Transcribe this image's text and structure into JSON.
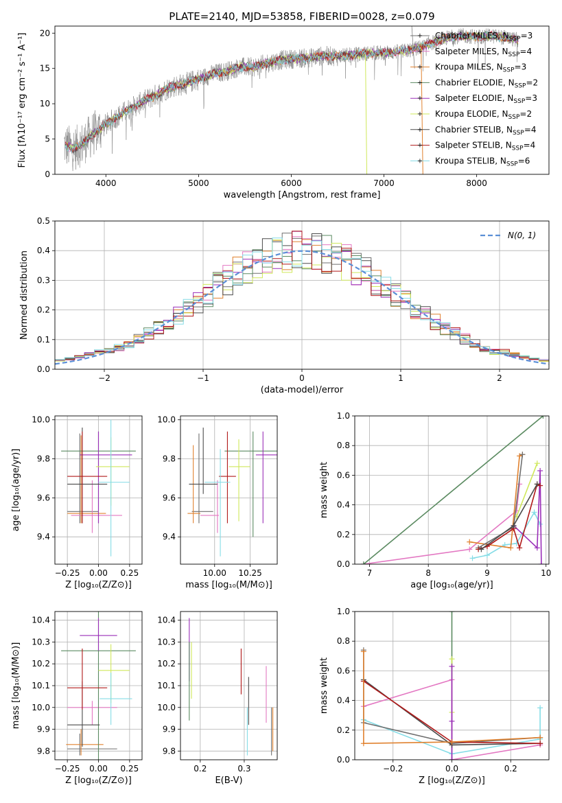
{
  "figure": {
    "title": "PLATE=2140, MJD=53858, FIBERID=0028, z=0.079"
  },
  "colors": {
    "chabrier_miles": "#6f6f6f",
    "salpeter_miles": "#e377c2",
    "kroupa_miles": "#e0812e",
    "chabrier_elodie": "#5a8a60",
    "salpeter_elodie": "#9a2eb8",
    "kroupa_elodie": "#cfe85a",
    "chabrier_stelib": "#4a4a4a",
    "salpeter_stelib": "#b01818",
    "kroupa_stelib": "#84dce6",
    "data": "#808080",
    "gauss": "#5b8fd6",
    "grid": "#b0b0b0"
  },
  "chart_data": [
    {
      "id": "spectrum",
      "type": "line",
      "xlabel": "wavelength [Angstrom, rest frame]",
      "ylabel": "Flux [fλ10⁻¹⁷ erg cm⁻² s⁻¹ A⁻¹]",
      "xlim": [
        3450,
        8780
      ],
      "ylim": [
        0,
        21
      ],
      "xticks": [
        4000,
        5000,
        6000,
        7000,
        8000
      ],
      "yticks": [
        0,
        5,
        10,
        15,
        20
      ],
      "grid": false,
      "legend_position": "right",
      "legend": [
        {
          "label": "Chabrier MILES, N",
          "sub": "SSP",
          "tail": "=3",
          "color": "chabrier_miles"
        },
        {
          "label": "Salpeter MILES, N",
          "sub": "SSP",
          "tail": "=4",
          "color": "salpeter_miles"
        },
        {
          "label": "Kroupa MILES, N",
          "sub": "SSP",
          "tail": "=3",
          "color": "kroupa_miles"
        },
        {
          "label": "Chabrier ELODIE, N",
          "sub": "SSP",
          "tail": "=2",
          "color": "chabrier_elodie"
        },
        {
          "label": "Salpeter ELODIE, N",
          "sub": "SSP",
          "tail": "=3",
          "color": "salpeter_elodie"
        },
        {
          "label": "Kroupa ELODIE, N",
          "sub": "SSP",
          "tail": "=2",
          "color": "kroupa_elodie"
        },
        {
          "label": "Chabrier STELIB, N",
          "sub": "SSP",
          "tail": "=4",
          "color": "chabrier_stelib"
        },
        {
          "label": "Salpeter STELIB, N",
          "sub": "SSP",
          "tail": "=4",
          "color": "salpeter_stelib"
        },
        {
          "label": "Kroupa STELIB, N",
          "sub": "SSP",
          "tail": "=6",
          "color": "kroupa_stelib"
        }
      ],
      "continuum": {
        "x": [
          3550,
          3650,
          3750,
          3850,
          3950,
          4100,
          4250,
          4400,
          4550,
          4700,
          4850,
          5000,
          5150,
          5300,
          5450,
          5600,
          5750,
          5900,
          6050,
          6200,
          6350,
          6500,
          6650,
          6800,
          6950,
          7100,
          7250,
          7400,
          7550,
          7700,
          7850,
          8000,
          8150,
          8300,
          8450
        ],
        "y": [
          4.2,
          3.6,
          4.3,
          5.6,
          6.6,
          8.0,
          9.2,
          10.3,
          11.3,
          12.4,
          12.8,
          13.5,
          14.2,
          14.6,
          15.2,
          15.2,
          15.8,
          16.2,
          16.4,
          16.5,
          16.8,
          16.7,
          16.9,
          17.1,
          17.2,
          17.3,
          17.5,
          18.0,
          18.8,
          19.4,
          19.6,
          19.5,
          19.6,
          19.4,
          19.0
        ]
      }
    },
    {
      "id": "residuals",
      "type": "histogram",
      "xlabel": "(data-model)/error",
      "ylabel": "Normed distribution",
      "xlim": [
        -2.5,
        2.5
      ],
      "ylim": [
        0,
        0.5
      ],
      "xticks": [
        -2,
        -1,
        0,
        1,
        2
      ],
      "yticks": [
        0.0,
        0.1,
        0.2,
        0.3,
        0.4,
        0.5
      ],
      "grid": true,
      "legend_position": "upper right",
      "legend_label": "N(0, 1)",
      "bin_width": 0.1
    },
    {
      "id": "age_vs_Z",
      "type": "scatter",
      "xlabel": "Z [log₁₀(Z/Z⊙)]",
      "ylabel": "age  [log₁₀(age/yr)]",
      "xlim": [
        -0.35,
        0.35
      ],
      "ylim": [
        9.26,
        10.02
      ],
      "xticks": [
        -0.25,
        0.0,
        0.25
      ],
      "yticks": [
        9.4,
        9.6,
        9.8,
        10.0
      ],
      "grid": true,
      "points": [
        {
          "color": "chabrier_miles",
          "x": -0.15,
          "y": 9.53,
          "xerr": [
            0.1,
            0.15
          ],
          "yerr": [
            0.06,
            0.4
          ]
        },
        {
          "color": "salpeter_miles",
          "x": -0.05,
          "y": 9.51,
          "xerr": [
            0.17,
            0.24
          ],
          "yerr": [
            0.09,
            0.18
          ]
        },
        {
          "color": "kroupa_miles",
          "x": -0.14,
          "y": 9.52,
          "xerr": [
            0.11,
            0.2
          ],
          "yerr": [
            0.05,
            0.4
          ]
        },
        {
          "color": "chabrier_elodie",
          "x": 0.0,
          "y": 9.84,
          "xerr": [
            0.3,
            0.3
          ],
          "yerr": [
            0.37,
            0.1
          ]
        },
        {
          "color": "salpeter_elodie",
          "x": 0.0,
          "y": 9.82,
          "xerr": [
            0.15,
            0.27
          ],
          "yerr": [
            0.35,
            0.12
          ]
        },
        {
          "color": "kroupa_elodie",
          "x": 0.1,
          "y": 9.76,
          "xerr": [
            0.12,
            0.15
          ],
          "yerr": [
            0.2,
            0.15
          ]
        },
        {
          "color": "chabrier_stelib",
          "x": -0.13,
          "y": 9.67,
          "xerr": [
            0.12,
            0.2
          ],
          "yerr": [
            0.2,
            0.29
          ]
        },
        {
          "color": "salpeter_stelib",
          "x": -0.13,
          "y": 9.71,
          "xerr": [
            0.12,
            0.2
          ],
          "yerr": [
            0.24,
            0.23
          ]
        },
        {
          "color": "kroupa_stelib",
          "x": 0.1,
          "y": 9.68,
          "xerr": [
            0.1,
            0.15
          ],
          "yerr": [
            0.38,
            0.32
          ]
        }
      ]
    },
    {
      "id": "age_vs_mass",
      "type": "scatter",
      "xlabel": "mass [log₁₀(M/M⊙)]",
      "ylabel": "",
      "xlim": [
        9.76,
        10.44
      ],
      "ylim": [
        9.26,
        10.02
      ],
      "xticks": [
        10.0,
        10.25
      ],
      "yticks": [
        9.4,
        9.6,
        9.8,
        10.0
      ],
      "grid": true,
      "points": [
        {
          "color": "chabrier_miles",
          "x": 9.89,
          "y": 9.53,
          "xerr": [
            0.05,
            0.1
          ],
          "yerr": [
            0.06,
            0.4
          ]
        },
        {
          "color": "salpeter_miles",
          "x": 10.02,
          "y": 9.51,
          "xerr": [
            0.12,
            0.01
          ],
          "yerr": [
            0.09,
            0.18
          ]
        },
        {
          "color": "kroupa_miles",
          "x": 9.85,
          "y": 9.52,
          "xerr": [
            0.04,
            0.05
          ],
          "yerr": [
            0.05,
            0.35
          ]
        },
        {
          "color": "chabrier_elodie",
          "x": 10.27,
          "y": 9.84,
          "xerr": [
            0.2,
            0.2
          ],
          "yerr": [
            0.44,
            0.1
          ]
        },
        {
          "color": "salpeter_elodie",
          "x": 10.34,
          "y": 9.82,
          "xerr": [
            0.05,
            0.1
          ],
          "yerr": [
            0.35,
            0.12
          ]
        },
        {
          "color": "kroupa_elodie",
          "x": 10.17,
          "y": 9.76,
          "xerr": [
            0.07,
            0.08
          ],
          "yerr": [
            0.28,
            0.14
          ]
        },
        {
          "color": "chabrier_stelib",
          "x": 9.92,
          "y": 9.67,
          "xerr": [
            0.1,
            0.1
          ],
          "yerr": [
            0.05,
            0.29
          ]
        },
        {
          "color": "salpeter_stelib",
          "x": 10.09,
          "y": 9.71,
          "xerr": [
            0.06,
            0.06
          ],
          "yerr": [
            0.24,
            0.23
          ]
        },
        {
          "color": "kroupa_stelib",
          "x": 10.04,
          "y": 9.68,
          "xerr": [
            0.11,
            0.07
          ],
          "yerr": [
            0.38,
            0.17
          ]
        }
      ]
    },
    {
      "id": "massweight_vs_age",
      "type": "line",
      "xlabel": "age  [log₁₀(age/yr)]",
      "ylabel": "mass weight",
      "xlim": [
        6.75,
        10.05
      ],
      "ylim": [
        0,
        1
      ],
      "xticks": [
        7,
        8,
        9,
        10
      ],
      "yticks": [
        0.0,
        0.2,
        0.4,
        0.6,
        0.8,
        1.0
      ],
      "grid": true,
      "series": [
        {
          "color": "salpeter_miles",
          "x": [
            6.9,
            8.7,
            9.5,
            9.55
          ],
          "y": [
            0.0,
            0.1,
            0.36,
            0.54
          ]
        },
        {
          "color": "chabrier_elodie",
          "x": [
            6.9,
            9.95
          ],
          "y": [
            0.0,
            1.0
          ]
        },
        {
          "color": "kroupa_elodie",
          "x": [
            9.5,
            9.85
          ],
          "y": [
            0.32,
            0.68
          ]
        },
        {
          "color": "kroupa_stelib",
          "x": [
            8.75,
            9.0,
            9.3,
            9.5,
            9.8,
            9.9
          ],
          "y": [
            0.04,
            0.06,
            0.13,
            0.14,
            0.35,
            0.27
          ]
        },
        {
          "color": "salpeter_elodie",
          "x": [
            9.45,
            9.85,
            9.9,
            9.92
          ],
          "y": [
            0.26,
            0.11,
            0.63,
            0.0
          ]
        },
        {
          "color": "kroupa_miles",
          "x": [
            8.7,
            9.4,
            9.55,
            9.6
          ],
          "y": [
            0.15,
            0.11,
            0.73,
            0.74
          ]
        },
        {
          "color": "chabrier_miles",
          "x": [
            8.85,
            9.45,
            9.6
          ],
          "y": [
            0.11,
            0.25,
            0.74
          ]
        },
        {
          "color": "salpeter_stelib",
          "x": [
            8.85,
            9.0,
            9.45,
            9.55,
            9.85,
            9.9
          ],
          "y": [
            0.1,
            0.12,
            0.24,
            0.11,
            0.54,
            0.53
          ]
        },
        {
          "color": "chabrier_stelib",
          "x": [
            8.9,
            9.45,
            9.85
          ],
          "y": [
            0.1,
            0.26,
            0.54
          ]
        }
      ]
    },
    {
      "id": "mass_vs_Z",
      "type": "scatter",
      "xlabel": "Z [log₁₀(Z/Z⊙)]",
      "ylabel": "mass [log₁₀(M/M⊙)]",
      "xlim": [
        -0.35,
        0.35
      ],
      "ylim": [
        9.76,
        10.44
      ],
      "xticks": [
        -0.25,
        0.0,
        0.25
      ],
      "yticks": [
        9.8,
        9.9,
        10.0,
        10.1,
        10.2,
        10.3,
        10.4
      ],
      "grid": true,
      "points": [
        {
          "color": "chabrier_miles",
          "x": -0.15,
          "y": 9.81,
          "xerr": [
            0.1,
            0.3
          ],
          "yerr": [
            0.03,
            0.07
          ]
        },
        {
          "color": "salpeter_miles",
          "x": -0.05,
          "y": 10.0,
          "xerr": [
            0.2,
            0.2
          ],
          "yerr": [
            0.08,
            0.03
          ]
        },
        {
          "color": "kroupa_miles",
          "x": -0.14,
          "y": 9.83,
          "xerr": [
            0.12,
            0.18
          ],
          "yerr": [
            0.05,
            0.07
          ]
        },
        {
          "color": "chabrier_elodie",
          "x": 0.0,
          "y": 10.26,
          "xerr": [
            0.3,
            0.3
          ],
          "yerr": [
            0.5,
            0.2
          ]
        },
        {
          "color": "salpeter_elodie",
          "x": 0.0,
          "y": 10.33,
          "xerr": [
            0.15,
            0.15
          ],
          "yerr": [
            0.07,
            0.08
          ]
        },
        {
          "color": "kroupa_elodie",
          "x": 0.1,
          "y": 10.17,
          "xerr": [
            0.1,
            0.15
          ],
          "yerr": [
            0.15,
            0.12
          ]
        },
        {
          "color": "chabrier_stelib",
          "x": -0.13,
          "y": 9.92,
          "xerr": [
            0.12,
            0.14
          ],
          "yerr": [
            0.1,
            0.2
          ]
        },
        {
          "color": "salpeter_stelib",
          "x": -0.13,
          "y": 10.09,
          "xerr": [
            0.12,
            0.2
          ],
          "yerr": [
            0.1,
            0.18
          ]
        },
        {
          "color": "kroupa_stelib",
          "x": 0.1,
          "y": 10.04,
          "xerr": [
            0.09,
            0.17
          ],
          "yerr": [
            0.12,
            0.12
          ]
        }
      ]
    },
    {
      "id": "mass_vs_ebv",
      "type": "scatter",
      "xlabel": "E(B-V)",
      "ylabel": "",
      "xlim": [
        0.155,
        0.375
      ],
      "ylim": [
        9.76,
        10.44
      ],
      "xticks": [
        0.2,
        0.3
      ],
      "yticks": [
        9.8,
        9.9,
        10.0,
        10.1,
        10.2,
        10.3,
        10.4
      ],
      "grid": true,
      "points": [
        {
          "color": "salpeter_elodie",
          "x": 0.175,
          "y": 10.2,
          "xerr": [
            0,
            0
          ],
          "yerr": [
            0.08,
            0.21
          ]
        },
        {
          "color": "chabrier_elodie",
          "x": 0.175,
          "y": 10.1,
          "xerr": [
            0,
            0
          ],
          "yerr": [
            0.16,
            0.2
          ]
        },
        {
          "color": "kroupa_elodie",
          "x": 0.18,
          "y": 10.2,
          "xerr": [
            0,
            0
          ],
          "yerr": [
            0.16,
            0.1
          ]
        },
        {
          "color": "salpeter_stelib",
          "x": 0.293,
          "y": 10.17,
          "xerr": [
            0,
            0
          ],
          "yerr": [
            0.11,
            0.1
          ]
        },
        {
          "color": "chabrier_stelib",
          "x": 0.31,
          "y": 10.05,
          "xerr": [
            0,
            0
          ],
          "yerr": [
            0.13,
            0.09
          ]
        },
        {
          "color": "kroupa_stelib",
          "x": 0.307,
          "y": 9.9,
          "xerr": [
            0,
            0
          ],
          "yerr": [
            0.12,
            0.1
          ]
        },
        {
          "color": "salpeter_miles",
          "x": 0.35,
          "y": 10.1,
          "xerr": [
            0,
            0
          ],
          "yerr": [
            0.17,
            0.09
          ]
        },
        {
          "color": "chabrier_miles",
          "x": 0.362,
          "y": 9.92,
          "xerr": [
            0,
            0
          ],
          "yerr": [
            0.14,
            0.08
          ]
        },
        {
          "color": "kroupa_miles",
          "x": 0.365,
          "y": 9.9,
          "xerr": [
            0,
            0
          ],
          "yerr": [
            0.1,
            0.1
          ]
        }
      ]
    },
    {
      "id": "massweight_vs_Z",
      "type": "line",
      "xlabel": "Z [log₁₀(Z/Z⊙)]",
      "ylabel": "mass weight",
      "xlim": [
        -0.33,
        0.33
      ],
      "ylim": [
        0,
        1
      ],
      "xticks": [
        -0.2,
        0.0,
        0.2
      ],
      "yticks": [
        0.0,
        0.2,
        0.4,
        0.6,
        0.8,
        1.0
      ],
      "grid": true,
      "series": [
        {
          "color": "chabrier_elodie",
          "x": [
            0.0,
            0.0
          ],
          "y": [
            0.0,
            1.0
          ]
        },
        {
          "color": "kroupa_elodie",
          "x": [
            0.0,
            0.0
          ],
          "y": [
            0.32,
            0.68
          ]
        },
        {
          "color": "salpeter_miles",
          "x": [
            -0.3,
            0.0,
            0.0,
            0.3
          ],
          "y": [
            0.36,
            0.54,
            0.0,
            0.1
          ]
        },
        {
          "color": "kroupa_stelib",
          "x": [
            -0.3,
            0.0,
            0.3,
            0.3
          ],
          "y": [
            0.27,
            0.04,
            0.14,
            0.35
          ]
        },
        {
          "color": "salpeter_elodie",
          "x": [
            0.0,
            0.0,
            0.0
          ],
          "y": [
            0.0,
            0.26,
            0.63
          ]
        },
        {
          "color": "chabrier_miles",
          "x": [
            -0.3,
            -0.3,
            0.0,
            0.3
          ],
          "y": [
            0.74,
            0.25,
            0.11,
            0.15
          ]
        },
        {
          "color": "chabrier_stelib",
          "x": [
            -0.3,
            0.0,
            0.3
          ],
          "y": [
            0.54,
            0.1,
            0.11
          ]
        },
        {
          "color": "salpeter_stelib",
          "x": [
            -0.3,
            0.0,
            0.3
          ],
          "y": [
            0.53,
            0.12,
            0.11
          ]
        },
        {
          "color": "kroupa_miles",
          "x": [
            -0.3,
            -0.3,
            0.0,
            0.3
          ],
          "y": [
            0.73,
            0.11,
            0.12,
            0.15
          ]
        }
      ]
    }
  ]
}
